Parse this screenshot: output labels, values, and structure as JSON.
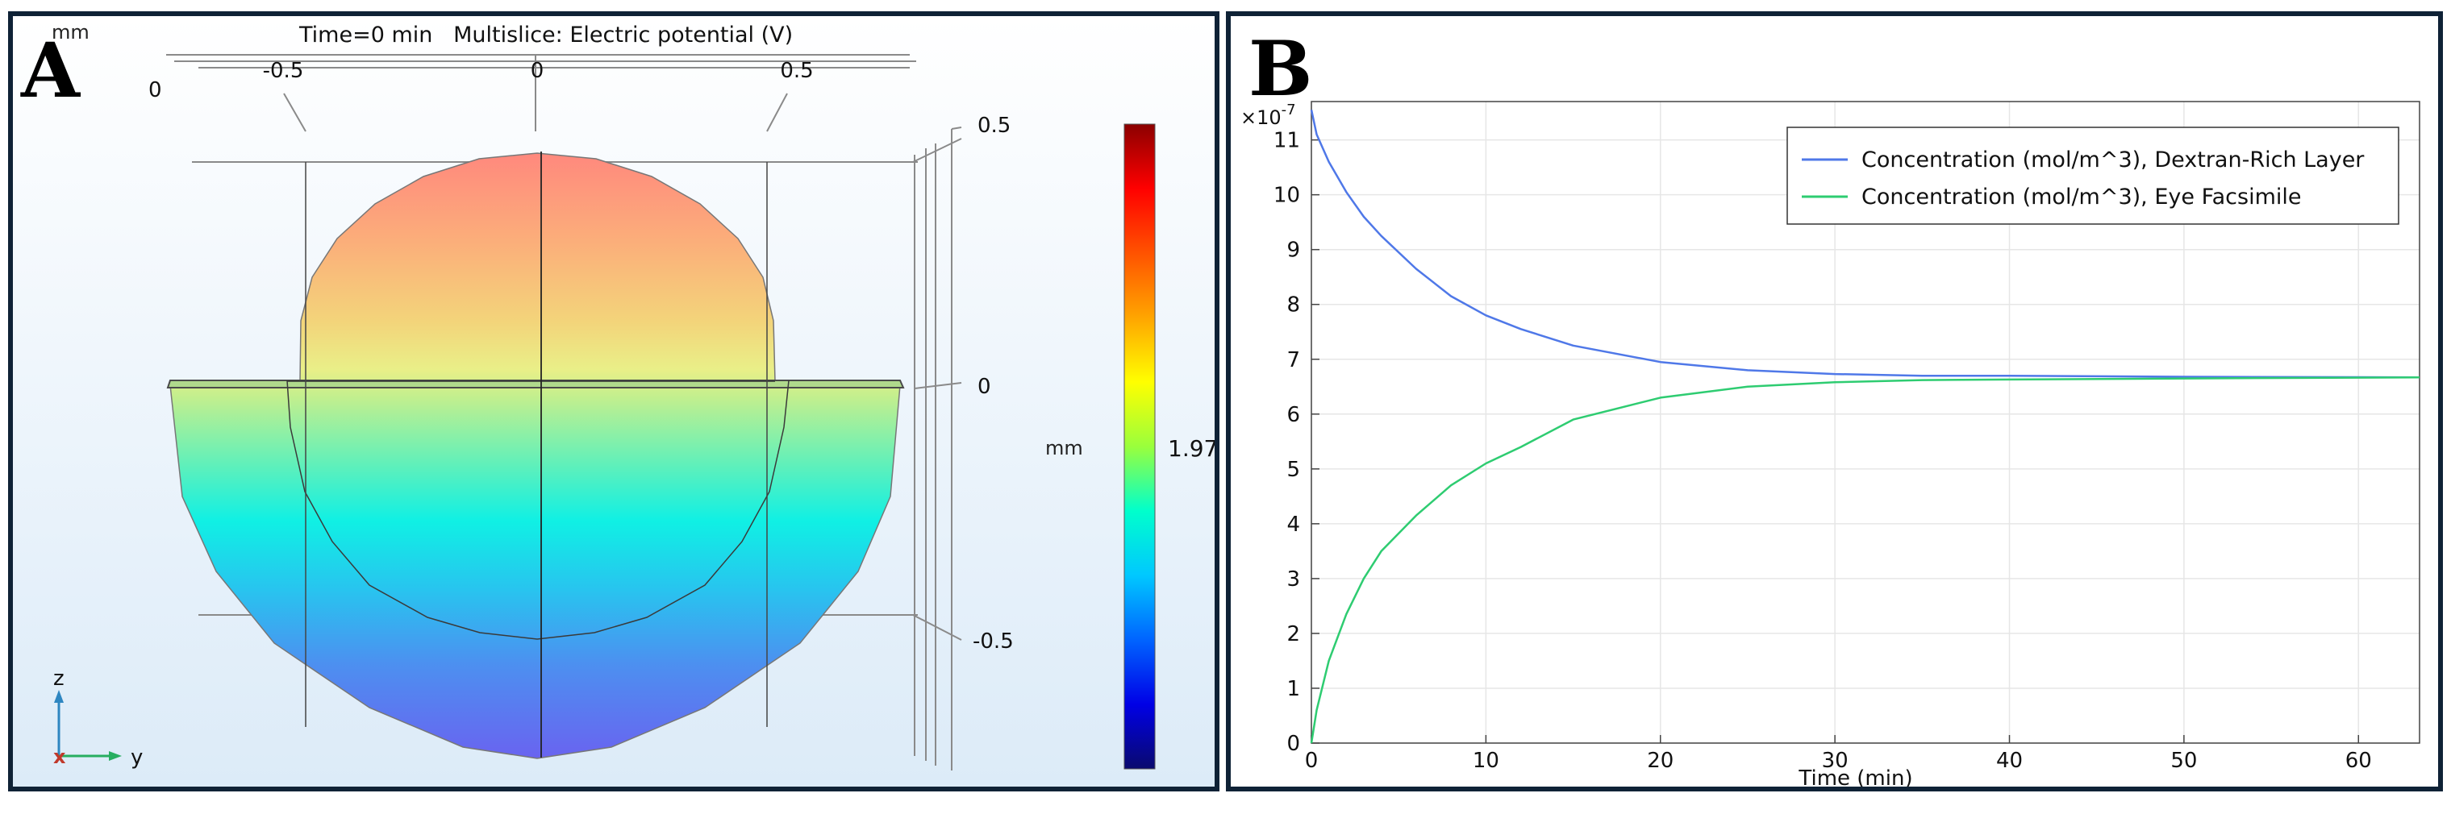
{
  "chart_data": [
    {
      "type": "heatmap",
      "panel_label": "A",
      "title": "Time=0 min   Multislice: Electric potential (V)",
      "corner_unit": "mm",
      "y_ticks": [
        "-0.5",
        "0",
        "0.5"
      ],
      "y_axis_start": "0",
      "z_ticks": [
        "0.5",
        "0",
        "-0.5"
      ],
      "z_unit": "mm",
      "colorbar": {
        "value_label": "1.97",
        "low_color": "#0a0a8c",
        "high_color": "#8b0000"
      },
      "triad": {
        "up": "z",
        "right": "y",
        "out": "x"
      }
    },
    {
      "type": "line",
      "panel_label": "B",
      "xlabel": "Time (min)",
      "y_exponent": "×10",
      "y_exponent_power": "-7",
      "xlim": [
        0,
        63.5
      ],
      "ylim": [
        0,
        11.7
      ],
      "x_ticks": [
        0,
        10,
        20,
        30,
        40,
        50,
        60
      ],
      "y_ticks": [
        0,
        1,
        2,
        3,
        4,
        5,
        6,
        7,
        8,
        9,
        10,
        11
      ],
      "grid": true,
      "legend_position": "top-right",
      "series": [
        {
          "name": "Concentration (mol/m^3), Dextran-Rich Layer",
          "color": "#4f78e8",
          "x": [
            0,
            0.3,
            1,
            2,
            3,
            4,
            6,
            8,
            10,
            12,
            15,
            20,
            25,
            30,
            35,
            40,
            50,
            63.5
          ],
          "y": [
            11.55,
            11.1,
            10.6,
            10.05,
            9.6,
            9.25,
            8.65,
            8.15,
            7.8,
            7.55,
            7.25,
            6.95,
            6.8,
            6.73,
            6.7,
            6.7,
            6.68,
            6.67
          ]
        },
        {
          "name": "Concentration (mol/m^3), Eye Facsimile",
          "color": "#2ecc71",
          "x": [
            0,
            0.3,
            1,
            2,
            3,
            4,
            6,
            8,
            10,
            12,
            15,
            20,
            25,
            30,
            35,
            40,
            50,
            63.5
          ],
          "y": [
            0,
            0.6,
            1.5,
            2.35,
            3.0,
            3.5,
            4.15,
            4.7,
            5.1,
            5.4,
            5.9,
            6.3,
            6.5,
            6.58,
            6.62,
            6.63,
            6.65,
            6.67
          ]
        }
      ]
    }
  ]
}
